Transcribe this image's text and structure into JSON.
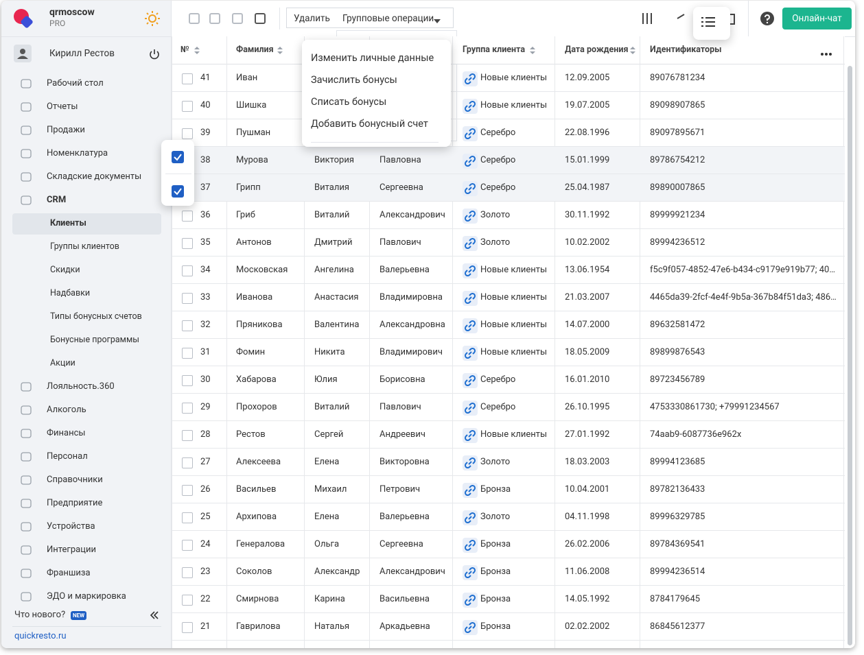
{
  "sidebar": {
    "brand": "qrmoscow",
    "plan": "PRO",
    "user": "Кирилл Рестов",
    "menu_top": [
      "Рабочий стол",
      "Отчеты",
      "Продажи",
      "Номенклатура",
      "Складские документы",
      "CRM"
    ],
    "submenu": [
      "Клиенты",
      "Группы клиентов",
      "Скидки",
      "Надбавки",
      "Типы бонусных счетов",
      "Бонусные программы",
      "Акции"
    ],
    "menu_bottom": [
      "Лояльность.360",
      "Алкоголь",
      "Финансы",
      "Персонал",
      "Справочники",
      "Предприятие",
      "Устройства",
      "Интеграции",
      "Франшиза",
      "ЭДО и маркировка"
    ],
    "whats_new": "Что нового?",
    "new_badge": "NEW",
    "site": "quickresto.ru"
  },
  "toolbar": {
    "delete": "Удалить",
    "group_ops": "Групповые операции",
    "chat": "Онлайн-чат"
  },
  "dropdown": [
    "Изменить личные данные",
    "Зачислить бонусы",
    "Списать бонусы",
    "Добавить бонусный счет"
  ],
  "table": {
    "headers": [
      "№",
      "Фамилия",
      "Группа клиента",
      "Дата рождения",
      "Идентификаторы"
    ],
    "rows": [
      [
        41,
        "Иван",
        null,
        null,
        "Новые клиенты",
        "12.09.2005",
        "89076781234"
      ],
      [
        40,
        "Шишка",
        null,
        null,
        "Новые клиенты",
        "19.07.2005",
        "89098907865"
      ],
      [
        39,
        "Пушман",
        null,
        null,
        "Серебро",
        "22.08.1996",
        "89097895671"
      ],
      [
        38,
        "Мурова",
        "Виктория",
        "Павловна",
        "Серебро",
        "15.01.1999",
        "89786754212"
      ],
      [
        37,
        "Грипп",
        "Виталия",
        "Сергеевна",
        "Серебро",
        "25.04.1987",
        "89890007865"
      ],
      [
        36,
        "Гриб",
        "Виталий",
        "Александрович",
        "Золото",
        "30.11.1992",
        "89999921234"
      ],
      [
        35,
        "Антонов",
        "Дмитрий",
        "Павлович",
        "Золото",
        "10.02.2002",
        "89994236512"
      ],
      [
        34,
        "Московская",
        "Ангелина",
        "Валерьевна",
        "Новые клиенты",
        "13.06.1954",
        "f5c9f057-4852-47e6-b434-c9179e919b77; 40…"
      ],
      [
        33,
        "Иванова",
        "Анастасия",
        "Владимировна",
        "Новые клиенты",
        "21.03.2007",
        "4465da39-2fcf-4e4f-9b5a-367b84f51da3; 486…"
      ],
      [
        32,
        "Пряникова",
        "Валентина",
        "Александровна",
        "Новые клиенты",
        "14.07.2000",
        "89632581472"
      ],
      [
        31,
        "Фомин",
        "Никита",
        "Владимирович",
        "Новые клиенты",
        "18.05.2009",
        "89899876543"
      ],
      [
        30,
        "Хабарова",
        "Юлия",
        "Борисовна",
        "Серебро",
        "16.01.2010",
        "89723456789"
      ],
      [
        29,
        "Прохоров",
        "Виталий",
        "Павлович",
        "Серебро",
        "26.10.1995",
        "4753330861730; +79991234567"
      ],
      [
        28,
        "Рестов",
        "Сергей",
        "Андреевич",
        "Новые клиенты",
        "27.01.1992",
        "74aab9-6087736e962x"
      ],
      [
        27,
        "Алексеева",
        "Елена",
        "Викторовна",
        "Золото",
        "18.03.2003",
        "89994123685"
      ],
      [
        26,
        "Васильев",
        "Михаил",
        "Петрович",
        "Бронза",
        "10.04.2001",
        "89782136433"
      ],
      [
        25,
        "Архипова",
        "Елена",
        "Валерьевна",
        "Золото",
        "04.11.1998",
        "89996329785"
      ],
      [
        24,
        "Генералова",
        "Ольга",
        "Сергеевна",
        "Бронза",
        "26.02.2006",
        "89784369541"
      ],
      [
        23,
        "Соколов",
        "Александр",
        "Александрович",
        "Бронза",
        "11.06.2008",
        "89994236514"
      ],
      [
        22,
        "Смирнова",
        "Карина",
        "Васильевна",
        "Бронза",
        "14.05.1992",
        "8784179645"
      ],
      [
        21,
        "Гаврилова",
        "Наталья",
        "Аркадьевна",
        "Бронза",
        "02.02.2002",
        "86845612377"
      ]
    ]
  }
}
